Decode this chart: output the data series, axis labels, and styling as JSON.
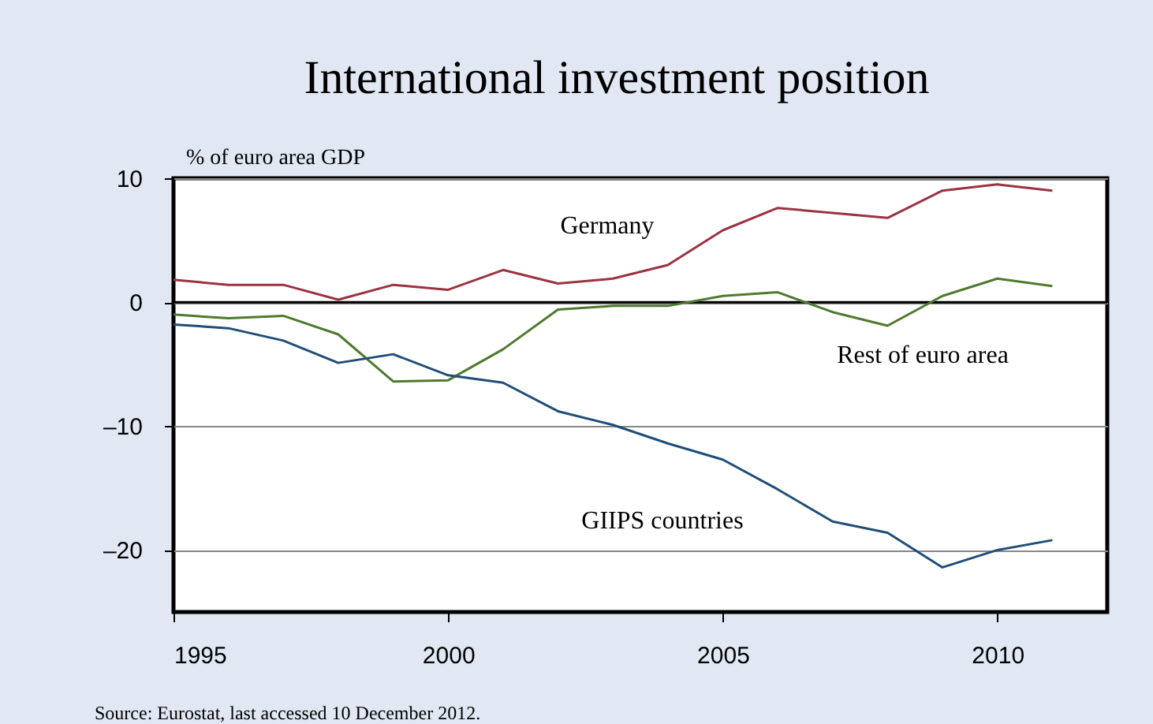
{
  "chart_data": {
    "type": "line",
    "title": "International investment position",
    "ylabel": "% of euro area GDP",
    "x": [
      1995,
      1996,
      1997,
      1998,
      1999,
      2000,
      2001,
      2002,
      2003,
      2004,
      2005,
      2006,
      2007,
      2008,
      2009,
      2010,
      2011
    ],
    "series": [
      {
        "name": "Germany",
        "color": "#9b3341",
        "values": [
          1.8,
          1.4,
          1.4,
          0.2,
          1.4,
          1.0,
          2.6,
          1.5,
          1.9,
          3.0,
          5.8,
          7.6,
          7.2,
          6.8,
          9.0,
          9.5,
          9.0
        ]
      },
      {
        "name": "Rest of euro area",
        "color": "#4f7a2e",
        "values": [
          -1.0,
          -1.3,
          -1.1,
          -2.6,
          -6.4,
          -6.3,
          -3.8,
          -0.6,
          -0.3,
          -0.3,
          0.5,
          0.8,
          -0.8,
          -1.9,
          0.5,
          1.9,
          1.3
        ]
      },
      {
        "name": "GIIPS countries",
        "color": "#1f4e79",
        "values": [
          -1.8,
          -2.1,
          -3.1,
          -4.9,
          -4.2,
          -5.9,
          -6.5,
          -8.8,
          -9.9,
          -11.4,
          -12.7,
          -15.1,
          -17.7,
          -18.6,
          -21.4,
          -20.0,
          -19.2
        ]
      }
    ],
    "xlim": [
      1995,
      2012
    ],
    "xticks": [
      1995,
      2000,
      2005,
      2010
    ],
    "ylim": [
      -25,
      10
    ],
    "yticks": [
      10,
      0,
      {
        "value": -10,
        "label": "–10"
      },
      {
        "value": -20,
        "label": "–20"
      }
    ],
    "grid": "y",
    "marker": "none",
    "line_style": "solid",
    "ref_lines": [
      {
        "axis": "y",
        "value": 0,
        "color": "#000000"
      }
    ],
    "annotations": [
      "Source: Eurostat, last accessed 10 December 2012."
    ]
  }
}
